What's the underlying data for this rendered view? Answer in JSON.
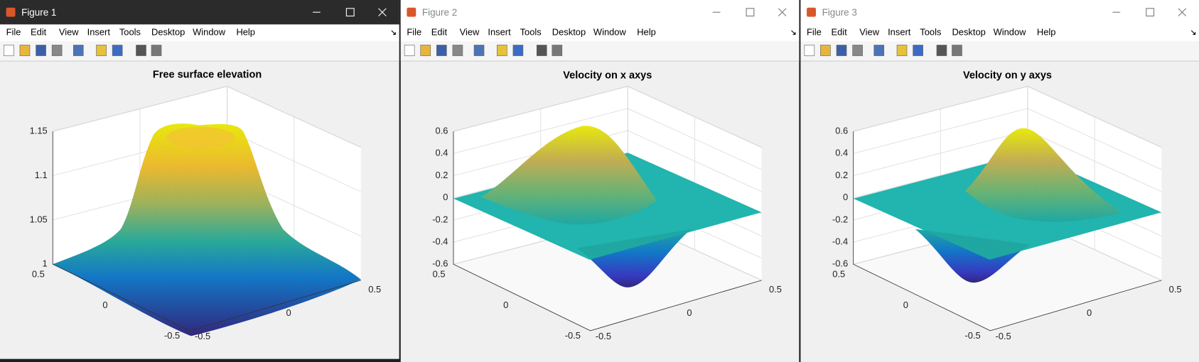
{
  "menu": [
    "File",
    "Edit",
    "View",
    "Insert",
    "Tools",
    "Desktop",
    "Window",
    "Help"
  ],
  "windows": [
    {
      "title": "Figure 1",
      "plot": {
        "title": "Free surface elevation",
        "z_ticks": [
          "1",
          "1.05",
          "1.1",
          "1.15"
        ],
        "x_ticks": [
          "0.5",
          "0",
          "-0.5"
        ],
        "y_ticks": [
          "-0.5",
          "0",
          "0.5"
        ]
      }
    },
    {
      "title": "Figure 2",
      "plot": {
        "title": "Velocity on x axys",
        "z_ticks": [
          "-0.6",
          "-0.4",
          "-0.2",
          "0",
          "0.2",
          "0.4",
          "0.6"
        ],
        "x_ticks": [
          "0.5",
          "0",
          "-0.5"
        ],
        "y_ticks": [
          "-0.5",
          "0",
          "0.5"
        ]
      }
    },
    {
      "title": "Figure 3",
      "plot": {
        "title": "Velocity on y axys",
        "z_ticks": [
          "-0.6",
          "-0.4",
          "-0.2",
          "0",
          "0.2",
          "0.4",
          "0.6"
        ],
        "x_ticks": [
          "0.5",
          "0",
          "-0.5"
        ],
        "y_ticks": [
          "-0.5",
          "0",
          "0.5"
        ]
      }
    }
  ]
}
